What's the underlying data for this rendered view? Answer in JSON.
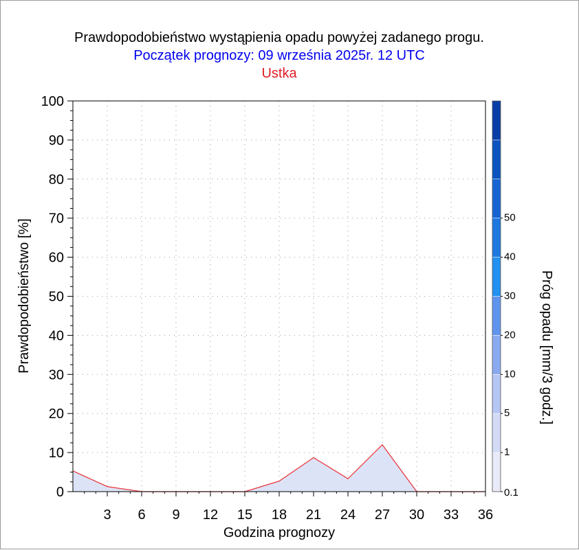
{
  "chart_data": {
    "type": "area",
    "title": "Prawdopodobieństwo wystąpienia opadu powyżej zadanego progu.",
    "subtitle": "Początek prognozy: 09 września 2025r. 12 UTC",
    "location": "Ustka",
    "xlabel": "Godzina prognozy",
    "ylabel": "Prawdopodobieństwo [%]",
    "right_label": "Próg opadu [mm/3 godz.]",
    "xlim": [
      0,
      36
    ],
    "ylim": [
      0,
      100
    ],
    "x_ticks": [
      "3",
      "6",
      "9",
      "12",
      "15",
      "18",
      "21",
      "24",
      "27",
      "30",
      "33",
      "36"
    ],
    "y_ticks": [
      "0",
      "10",
      "20",
      "30",
      "40",
      "50",
      "60",
      "70",
      "80",
      "90",
      "100"
    ],
    "grid": true,
    "series": [
      {
        "name": "0.1",
        "x": [
          0,
          3,
          6,
          9,
          12,
          15,
          18,
          21,
          24,
          27,
          30,
          33,
          36
        ],
        "y": [
          5.3,
          1.3,
          0,
          0,
          0,
          0,
          2.7,
          8.7,
          3.3,
          12,
          0,
          0,
          0
        ]
      }
    ],
    "colorbar": {
      "tick_labels": [
        "0.1",
        "1",
        "5",
        "10",
        "20",
        "30",
        "40",
        "50"
      ],
      "colors": [
        "#e8eaf8",
        "#d2daf6",
        "#b6c6f4",
        "#8aaaf0",
        "#5f94ee",
        "#2391f0",
        "#1f78e0",
        "#1664d3",
        "#0d53bf",
        "#083ea6"
      ]
    },
    "colors": {
      "fill": "#dde3f7",
      "line": "#e8383c",
      "subtitle": "#0000ee",
      "location": "#e01b24"
    }
  }
}
